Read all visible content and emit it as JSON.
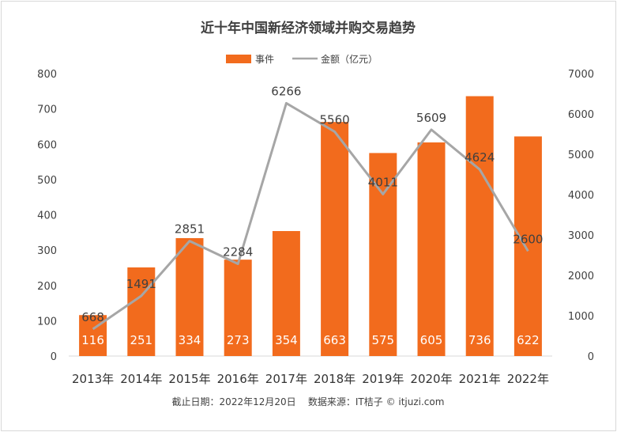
{
  "chart_data": {
    "type": "bar",
    "title": "近十年中国新经济领域并购交易趋势",
    "categories": [
      "2013年",
      "2014年",
      "2015年",
      "2016年",
      "2017年",
      "2018年",
      "2019年",
      "2020年",
      "2021年",
      "2022年"
    ],
    "series": [
      {
        "name": "事件",
        "type": "bar",
        "axis": "left",
        "color": "#f26b1d",
        "values": [
          116,
          251,
          334,
          273,
          354,
          663,
          575,
          605,
          736,
          622
        ]
      },
      {
        "name": "金额（亿元）",
        "type": "line",
        "axis": "right",
        "color": "#a6a6a6",
        "values": [
          668,
          1491,
          2851,
          2284,
          6266,
          5560,
          4011,
          5609,
          4624,
          2600
        ]
      }
    ],
    "y_left": {
      "min": 0,
      "max": 800,
      "ticks": [
        "0",
        "100",
        "200",
        "300",
        "400",
        "500",
        "600",
        "700",
        "800"
      ]
    },
    "y_right": {
      "min": 0,
      "max": 7000,
      "ticks": [
        "0",
        "1000",
        "2000",
        "3000",
        "4000",
        "5000",
        "6000",
        "7000"
      ]
    },
    "grid": false,
    "legend": "top-center",
    "footer": "截止日期：2022年12月20日    数据来源：IT桔子 © itjuzi.com"
  }
}
